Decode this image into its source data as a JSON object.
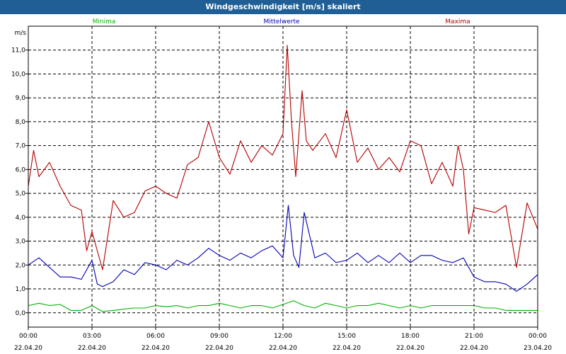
{
  "window": {
    "title": "Windgeschwindigkeit [m/s] skaliert"
  },
  "chart_data": {
    "type": "line",
    "title": "Windgeschwindigkeit [m/s] skaliert",
    "ylabel": "m/s",
    "ylim": [
      -0.6,
      12.0
    ],
    "yticks": [
      0.0,
      1.0,
      2.0,
      3.0,
      4.0,
      5.0,
      6.0,
      7.0,
      8.0,
      9.0,
      10.0,
      11.0
    ],
    "ytick_labels": [
      "0,0",
      "1,0",
      "2,0",
      "3,0",
      "4,0",
      "5,0",
      "6,0",
      "7,0",
      "8,0",
      "9,0",
      "10,0",
      "11,0"
    ],
    "xlim": [
      0,
      24
    ],
    "xticks": [
      0,
      3,
      6,
      9,
      12,
      15,
      18,
      21,
      24
    ],
    "xtick_times": [
      "00:00",
      "03:00",
      "06:00",
      "09:00",
      "12:00",
      "15:00",
      "18:00",
      "21:00",
      "00:00"
    ],
    "xtick_dates": [
      "22.04.20",
      "22.04.20",
      "22.04.20",
      "22.04.20",
      "22.04.20",
      "22.04.20",
      "22.04.20",
      "22.04.20",
      "23.04.20"
    ],
    "grid": true,
    "series": [
      {
        "name": "Minima",
        "color": "#00b400",
        "x": [
          0,
          0.5,
          1,
          1.5,
          2,
          2.5,
          3,
          3.5,
          4,
          4.5,
          5,
          5.5,
          6,
          6.5,
          7,
          7.5,
          8,
          8.5,
          9,
          9.5,
          10,
          10.5,
          11,
          11.5,
          12,
          12.5,
          13,
          13.5,
          14,
          14.5,
          15,
          15.5,
          16,
          16.5,
          17,
          17.5,
          18,
          18.5,
          19,
          19.5,
          20,
          20.5,
          21,
          21.5,
          22,
          22.5,
          23,
          23.5,
          24
        ],
        "values": [
          0.3,
          0.4,
          0.3,
          0.35,
          0.1,
          0.1,
          0.3,
          0.05,
          0.1,
          0.15,
          0.2,
          0.2,
          0.3,
          0.25,
          0.3,
          0.2,
          0.3,
          0.3,
          0.4,
          0.3,
          0.2,
          0.3,
          0.3,
          0.2,
          0.35,
          0.5,
          0.3,
          0.2,
          0.4,
          0.3,
          0.2,
          0.3,
          0.3,
          0.4,
          0.3,
          0.2,
          0.3,
          0.2,
          0.3,
          0.3,
          0.3,
          0.3,
          0.3,
          0.2,
          0.2,
          0.1,
          0.1,
          0.1,
          0.1
        ]
      },
      {
        "name": "Mittelwerte",
        "color": "#0000b4",
        "x": [
          0,
          0.5,
          1,
          1.5,
          2,
          2.5,
          3,
          3.25,
          3.5,
          4,
          4.5,
          5,
          5.5,
          6,
          6.5,
          7,
          7.5,
          8,
          8.5,
          9,
          9.5,
          10,
          10.5,
          11,
          11.5,
          12,
          12.25,
          12.5,
          12.75,
          13,
          13.5,
          14,
          14.5,
          15,
          15.5,
          16,
          16.5,
          17,
          17.5,
          18,
          18.5,
          19,
          19.5,
          20,
          20.5,
          21,
          21.5,
          22,
          22.5,
          23,
          23.5,
          24
        ],
        "values": [
          2.0,
          2.3,
          1.9,
          1.5,
          1.5,
          1.4,
          2.2,
          1.2,
          1.1,
          1.3,
          1.8,
          1.6,
          2.1,
          2.0,
          1.8,
          2.2,
          2.0,
          2.3,
          2.7,
          2.4,
          2.2,
          2.5,
          2.3,
          2.6,
          2.8,
          2.3,
          4.5,
          2.4,
          1.9,
          4.2,
          2.3,
          2.5,
          2.1,
          2.2,
          2.5,
          2.1,
          2.4,
          2.1,
          2.5,
          2.1,
          2.4,
          2.4,
          2.2,
          2.1,
          2.3,
          1.5,
          1.3,
          1.3,
          1.2,
          0.9,
          1.2,
          1.6
        ]
      },
      {
        "name": "Maxima",
        "color": "#b40000",
        "x": [
          0,
          0.25,
          0.5,
          1,
          1.5,
          2,
          2.5,
          2.75,
          3,
          3.25,
          3.5,
          4,
          4.5,
          5,
          5.5,
          6,
          6.5,
          7,
          7.5,
          8,
          8.5,
          9,
          9.5,
          10,
          10.5,
          11,
          11.5,
          12,
          12.2,
          12.4,
          12.6,
          12.9,
          13.1,
          13.4,
          14,
          14.5,
          15,
          15.5,
          16,
          16.5,
          17,
          17.5,
          18,
          18.5,
          19,
          19.5,
          20,
          20.25,
          20.5,
          20.75,
          21,
          21.5,
          22,
          22.5,
          23,
          23.5,
          24
        ],
        "values": [
          5.3,
          6.8,
          5.7,
          6.3,
          5.3,
          4.5,
          4.3,
          2.6,
          3.4,
          2.6,
          1.8,
          4.7,
          4.0,
          4.2,
          5.1,
          5.3,
          5.0,
          4.8,
          6.2,
          6.5,
          8.0,
          6.5,
          5.8,
          7.2,
          6.3,
          7.0,
          6.6,
          7.5,
          11.2,
          8.0,
          5.7,
          9.3,
          7.2,
          6.8,
          7.5,
          6.5,
          8.5,
          6.3,
          6.9,
          6.0,
          6.5,
          5.9,
          7.2,
          7.0,
          5.4,
          6.3,
          5.3,
          7.0,
          6.0,
          3.3,
          4.4,
          4.3,
          4.2,
          4.5,
          1.9,
          4.6,
          3.5
        ]
      }
    ]
  }
}
